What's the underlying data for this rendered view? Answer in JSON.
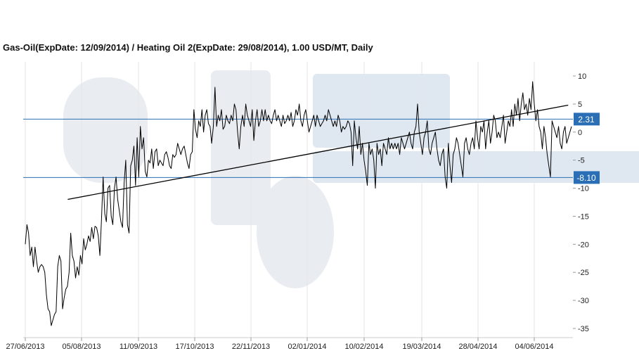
{
  "chart_data": {
    "type": "line",
    "title": "Gas-Oil(ExpDate: 12/09/2014) / Heating Oil 2(ExpDate: 29/08/2014), 1.00 USD/MT, Daily",
    "xlabel": "",
    "ylabel": "",
    "ylim": [
      -36,
      11
    ],
    "y_ticks": [
      10,
      5,
      0,
      -5,
      -10,
      -15,
      -20,
      -25,
      -30,
      -35
    ],
    "x_tick_labels": [
      "27/06/2013",
      "05/08/2013",
      "11/09/2013",
      "17/10/2013",
      "22/11/2013",
      "02/01/2014",
      "10/02/2014",
      "19/03/2014",
      "28/04/2014",
      "04/06/2014"
    ],
    "grid": "vertical",
    "axis_side": "right",
    "colors": {
      "line": "#000000",
      "level": "#2a6fb5",
      "grid": "#e6e6e6"
    },
    "levels": [
      {
        "value": 2.31,
        "label": "2.31"
      },
      {
        "value": -8.1,
        "label": "-8.10"
      }
    ],
    "trendline": {
      "from": [
        0.75,
        -12
      ],
      "to": [
        9.6,
        4.8
      ]
    },
    "series": [
      {
        "values": [
          -20,
          -16.5,
          -18,
          -22,
          -20.5,
          -24,
          -20.5,
          -23,
          -25,
          -24,
          -23.6,
          -24,
          -25,
          -29,
          -31.5,
          -32,
          -34.5,
          -33.5,
          -32.5,
          -32,
          -24,
          -22,
          -23,
          -31.5,
          -29.5,
          -28,
          -27.5,
          -25,
          -18,
          -22,
          -23,
          -26,
          -24,
          -25.5,
          -22,
          -23.5,
          -19,
          -21,
          -20,
          -18.5,
          -19.5,
          -17,
          -19,
          -16.8,
          -17,
          -18.5,
          -22,
          -15.5,
          -8,
          -14.5,
          -16,
          -10,
          -9.5,
          -15,
          -16.5,
          -10,
          -8,
          -12,
          -14,
          -16,
          -17,
          -9,
          -5,
          -16.5,
          -18,
          -6,
          -5,
          -2.5,
          -9.5,
          -1,
          -8,
          1,
          -3,
          -1,
          -7,
          -8,
          -5,
          -5.5,
          -3,
          -6.5,
          -3.5,
          -3,
          -6,
          -5,
          -5.5,
          -6,
          -4,
          -3.5,
          -4.5,
          -6,
          -6.5,
          -4,
          -4.5,
          -4,
          -2,
          -3,
          -4,
          -3,
          -2.5,
          -4,
          -5.5,
          -6.5,
          -4,
          -3.5,
          4,
          0.5,
          -1,
          2,
          1,
          4,
          0,
          3,
          4,
          1.5,
          1,
          -2,
          1,
          8,
          1,
          3,
          2,
          4,
          0.5,
          1,
          3,
          2,
          1.5,
          3,
          2,
          5,
          4,
          0,
          -3,
          1,
          3,
          1,
          5,
          3,
          2,
          1,
          4,
          -1.5,
          2,
          4,
          1,
          2,
          4,
          2,
          4,
          2,
          3,
          2,
          1.5,
          3,
          4,
          2,
          3,
          2,
          1,
          3,
          1.5,
          2,
          3,
          2,
          3.5,
          1,
          2,
          4,
          3,
          5,
          2,
          1,
          3,
          4,
          2,
          0,
          1,
          2,
          3,
          1,
          3,
          2,
          1,
          1.5,
          2,
          3,
          2,
          4,
          3,
          2,
          1,
          2,
          1,
          3,
          2,
          0,
          1,
          0.5,
          1,
          2,
          1.5,
          0,
          -6,
          2,
          -1,
          -3,
          1,
          -4,
          -2,
          -5,
          -7,
          -9.5,
          -2,
          -4,
          -3,
          -5,
          -10,
          -2,
          -4,
          -3,
          -6,
          -2,
          -3,
          -4,
          -1,
          -3,
          -2,
          -3,
          -2,
          -3,
          -2,
          -4,
          -1,
          -2,
          -3,
          -2,
          -1,
          0,
          -2,
          -3,
          0,
          1,
          5,
          0,
          -2,
          -4,
          -1,
          0,
          2,
          -3,
          -4,
          -2,
          -1,
          0,
          -3,
          -5,
          -6,
          -4,
          -3,
          -8,
          -10,
          -2,
          -6,
          -9,
          -4,
          -3,
          -1,
          -2,
          -4,
          -6,
          -8,
          -2,
          -1,
          -3,
          -4,
          -2,
          -1,
          -3,
          2,
          -1,
          -3,
          1,
          0,
          2,
          -3,
          0,
          2,
          -2,
          0,
          3,
          2,
          -1,
          0,
          -1,
          1,
          3,
          -2,
          0,
          2,
          1,
          4,
          1,
          5,
          3,
          6,
          2,
          5,
          7,
          4,
          5,
          3,
          6,
          4,
          9,
          5,
          2,
          4,
          1,
          0,
          -3,
          1,
          -1,
          -4,
          -6,
          -8,
          2,
          1,
          0,
          -1,
          1,
          -2,
          -3,
          0,
          1,
          -2,
          -1,
          0,
          1
        ]
      }
    ]
  }
}
